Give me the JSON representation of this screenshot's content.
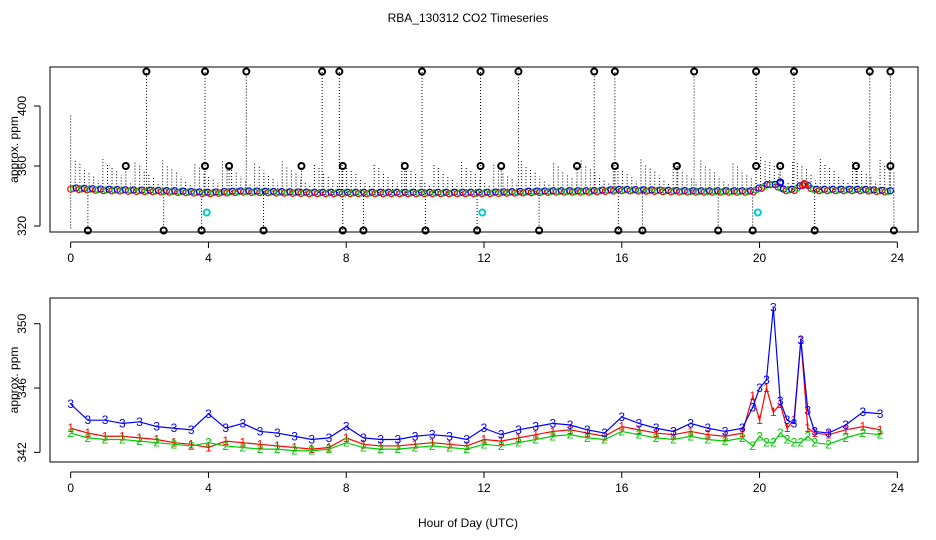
{
  "chart_data": {
    "type": "scatter",
    "title": "RBA_130312  CO2 Timeseries",
    "xlabel": "Hour of Day (UTC)",
    "colors": {
      "ch1": "#ff0000",
      "ch2": "#00cc00",
      "ch3": "#0000ff",
      "flag": "#000000",
      "alt": "#00cccc"
    },
    "panels": [
      {
        "ylabel": "approx. ppm",
        "xlim": [
          -0.6,
          24.6
        ],
        "ylim": [
          316,
          426
        ],
        "xticks": [
          0,
          4,
          8,
          12,
          16,
          20,
          24
        ],
        "yticks": [
          320,
          360,
          400
        ],
        "baseline": [
          [
            0,
            345
          ],
          [
            1,
            344
          ],
          [
            2,
            343.5
          ],
          [
            3,
            343
          ],
          [
            4,
            342
          ],
          [
            5,
            343
          ],
          [
            6,
            342.5
          ],
          [
            7,
            342
          ],
          [
            8,
            342
          ],
          [
            9,
            342
          ],
          [
            10,
            342
          ],
          [
            11,
            342
          ],
          [
            12,
            342
          ],
          [
            13,
            342.5
          ],
          [
            14,
            343
          ],
          [
            15,
            343
          ],
          [
            16,
            344
          ],
          [
            17,
            343.5
          ],
          [
            18,
            343
          ],
          [
            19,
            343
          ],
          [
            19.8,
            343
          ],
          [
            20,
            345
          ],
          [
            20.3,
            348
          ],
          [
            20.5,
            347
          ],
          [
            20.7,
            344
          ],
          [
            21,
            344
          ],
          [
            21.3,
            348
          ],
          [
            21.6,
            344
          ],
          [
            22,
            344
          ],
          [
            23,
            344
          ],
          [
            23.8,
            343
          ]
        ],
        "high_outliers": [
          2.2,
          3.9,
          5.1,
          7.3,
          7.8,
          10.2,
          11.9,
          13.0,
          15.2,
          15.8,
          18.1,
          19.9,
          21.0,
          23.2,
          23.8
        ],
        "mid_outliers": [
          1.6,
          3.9,
          4.6,
          6.7,
          7.9,
          9.7,
          11.9,
          12.5,
          14.7,
          15.8,
          17.6,
          19.9,
          20.6,
          22.8,
          23.8
        ],
        "low_outliers": [
          0.5,
          2.7,
          3.8,
          5.6,
          7.9,
          8.5,
          10.3,
          11.8,
          13.6,
          15.9,
          16.6,
          18.8,
          19.8,
          21.6,
          23.9
        ],
        "alt_points": [
          [
            3.95,
            329
          ],
          [
            11.95,
            329
          ],
          [
            19.95,
            329
          ]
        ]
      },
      {
        "ylabel": "approx. ppm",
        "xlim": [
          -0.6,
          24.6
        ],
        "ylim": [
          341.4,
          351.6
        ],
        "xticks": [
          0,
          4,
          8,
          12,
          16,
          20,
          24
        ],
        "yticks": [
          342,
          346,
          350
        ],
        "series": [
          {
            "name": "1",
            "color": "#ff0000",
            "x": [
              0,
              0.5,
              1,
              1.5,
              2,
              2.5,
              3,
              3.5,
              4,
              4.5,
              5,
              5.5,
              6,
              6.5,
              7,
              7.5,
              8,
              8.5,
              9,
              9.5,
              10,
              10.5,
              11,
              11.5,
              12,
              12.5,
              13,
              13.5,
              14,
              14.5,
              15,
              15.5,
              16,
              16.5,
              17,
              17.5,
              18,
              18.5,
              19,
              19.5,
              19.8,
              20,
              20.2,
              20.4,
              20.6,
              20.8,
              21,
              21.2,
              21.4,
              21.6,
              22,
              22.5,
              23,
              23.5
            ],
            "y": [
              343.5,
              343.2,
              343,
              343,
              342.9,
              342.8,
              342.6,
              342.5,
              342.3,
              342.7,
              342.6,
              342.5,
              342.4,
              342.3,
              342.2,
              342.3,
              342.9,
              342.5,
              342.4,
              342.4,
              342.5,
              342.6,
              342.5,
              342.4,
              342.8,
              342.7,
              342.9,
              343.1,
              343.3,
              343.4,
              343.2,
              343.0,
              343.6,
              343.4,
              343.2,
              343.1,
              343.3,
              343.1,
              343.0,
              343.2,
              345.5,
              344,
              346,
              344.5,
              345,
              343.5,
              344,
              349,
              343.5,
              343.2,
              343.1,
              343.4,
              343.6,
              343.4
            ]
          },
          {
            "name": "2",
            "color": "#00cc00",
            "x": [
              0,
              0.5,
              1,
              1.5,
              2,
              2.5,
              3,
              3.5,
              4,
              4.5,
              5,
              5.5,
              6,
              6.5,
              7,
              7.5,
              8,
              8.5,
              9,
              9.5,
              10,
              10.5,
              11,
              11.5,
              12,
              12.5,
              13,
              13.5,
              14,
              14.5,
              15,
              15.5,
              16,
              16.5,
              17,
              17.5,
              18,
              18.5,
              19,
              19.5,
              19.8,
              20,
              20.2,
              20.4,
              20.6,
              20.8,
              21,
              21.2,
              21.4,
              21.6,
              22,
              22.5,
              23,
              23.5
            ],
            "y": [
              343.2,
              342.9,
              342.8,
              342.8,
              342.7,
              342.6,
              342.5,
              342.4,
              342.6,
              342.4,
              342.3,
              342.2,
              342.2,
              342.1,
              342.1,
              342.2,
              342.6,
              342.3,
              342.2,
              342.2,
              342.3,
              342.4,
              342.3,
              342.2,
              342.5,
              342.4,
              342.6,
              342.8,
              343,
              343.1,
              342.9,
              342.8,
              343.3,
              343.1,
              342.9,
              342.8,
              343,
              342.8,
              342.7,
              342.9,
              342.4,
              343.0,
              342.6,
              342.6,
              343.2,
              342.8,
              342.6,
              342.6,
              343,
              342.6,
              342.5,
              342.9,
              343.2,
              343.1
            ]
          },
          {
            "name": "3",
            "color": "#0000ff",
            "x": [
              0,
              0.5,
              1,
              1.5,
              2,
              2.5,
              3,
              3.5,
              4,
              4.5,
              5,
              5.5,
              6,
              6.5,
              7,
              7.5,
              8,
              8.5,
              9,
              9.5,
              10,
              10.5,
              11,
              11.5,
              12,
              12.5,
              13,
              13.5,
              14,
              14.5,
              15,
              15.5,
              16,
              16.5,
              17,
              17.5,
              18,
              18.5,
              19,
              19.5,
              19.8,
              20,
              20.2,
              20.4,
              20.6,
              20.8,
              21,
              21.2,
              21.4,
              21.6,
              22,
              22.5,
              23,
              23.5
            ],
            "y": [
              345,
              344,
              344,
              343.8,
              343.9,
              343.6,
              343.5,
              343.4,
              344.4,
              343.5,
              343.8,
              343.3,
              343.2,
              343,
              342.8,
              342.9,
              343.6,
              342.9,
              342.8,
              342.8,
              343,
              343.1,
              343,
              342.8,
              343.5,
              343.1,
              343.4,
              343.6,
              343.8,
              343.7,
              343.4,
              343.2,
              344.2,
              343.8,
              343.5,
              343.3,
              343.8,
              343.5,
              343.3,
              343.5,
              344.8,
              346,
              346.5,
              351,
              345.2,
              344,
              343.8,
              349,
              344.6,
              343.3,
              343.2,
              343.7,
              344.5,
              344.4
            ]
          }
        ]
      }
    ]
  }
}
